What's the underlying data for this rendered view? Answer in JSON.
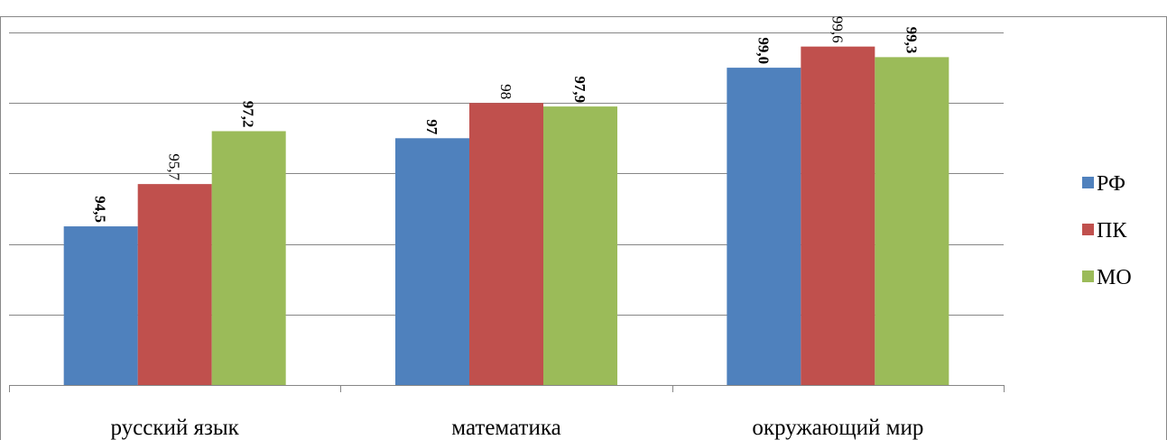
{
  "chart_data": {
    "type": "bar",
    "title": "",
    "xlabel": "",
    "ylabel": "",
    "categories": [
      "русский язык",
      "математика",
      "окружающий мир"
    ],
    "series": [
      {
        "name": "РФ",
        "color": "#4f81bd",
        "values": [
          94.5,
          97.0,
          99.0
        ],
        "labels": [
          "94,5",
          "97",
          "99,0"
        ]
      },
      {
        "name": "ПК",
        "color": "#c0504d",
        "values": [
          95.7,
          98.0,
          99.6
        ],
        "labels": [
          "95,7",
          "98",
          "99,6"
        ]
      },
      {
        "name": "МО",
        "color": "#9bbb59",
        "values": [
          97.2,
          97.9,
          99.3
        ],
        "labels": [
          "97,2",
          "97,9",
          "99,3"
        ]
      }
    ],
    "ylim": [
      90,
      100
    ],
    "grid": true,
    "legend_position": "right"
  }
}
